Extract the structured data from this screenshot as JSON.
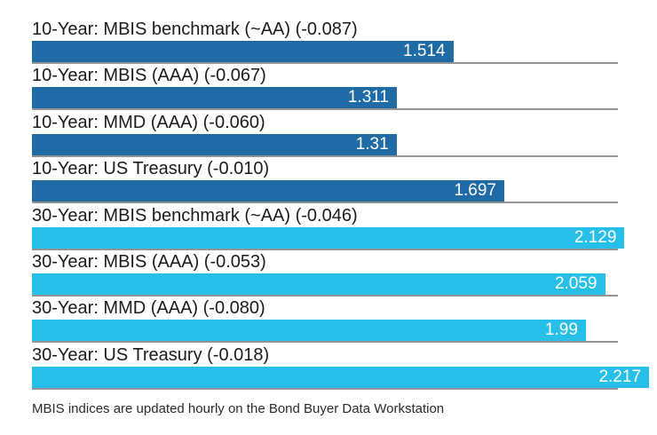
{
  "chart_data": {
    "type": "bar",
    "orientation": "horizontal",
    "title": "",
    "xlabel": "",
    "ylabel": "",
    "xlim": [
      0,
      2.25
    ],
    "grid": false,
    "legend": "none",
    "rows": [
      {
        "label": "10-Year: MBIS benchmark (~AA) (-0.087)",
        "value": 1.514,
        "value_label": "1.514",
        "group": "10-year"
      },
      {
        "label": "10-Year: MBIS (AAA) (-0.067)",
        "value": 1.311,
        "value_label": "1.311",
        "group": "10-year"
      },
      {
        "label": "10-Year: MMD (AAA) (-0.060)",
        "value": 1.31,
        "value_label": "1.31",
        "group": "10-year"
      },
      {
        "label": "10-Year: US Treasury (-0.010)",
        "value": 1.697,
        "value_label": "1.697",
        "group": "10-year"
      },
      {
        "label": "30-Year: MBIS benchmark (~AA) (-0.046)",
        "value": 2.129,
        "value_label": "2.129",
        "group": "30-year"
      },
      {
        "label": "30-Year: MBIS (AAA) (-0.053)",
        "value": 2.059,
        "value_label": "2.059",
        "group": "30-year"
      },
      {
        "label": "30-Year: MMD (AAA) (-0.080)",
        "value": 1.99,
        "value_label": "1.99",
        "group": "30-year"
      },
      {
        "label": "30-Year: US Treasury (-0.018)",
        "value": 2.217,
        "value_label": "2.217",
        "group": "30-year"
      }
    ],
    "group_colors": {
      "10-year": "#1F6BA5",
      "30-year": "#27BFE7"
    },
    "baseline_color": "#949494",
    "value_text_color": "#FFFFFF",
    "label_text_color": "#1B1B1B",
    "footnote": "MBIS indices are updated hourly on the Bond Buyer Data Workstation"
  }
}
